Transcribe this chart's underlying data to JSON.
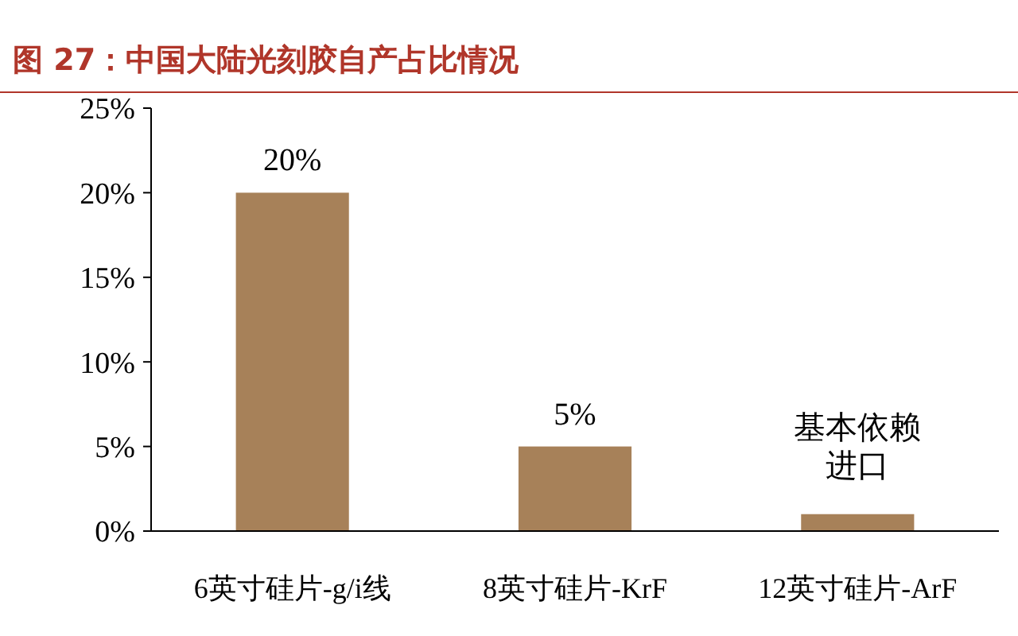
{
  "chart_data": {
    "type": "bar",
    "title": "图 27：中国大陆光刻胶自产占比情况",
    "categories": [
      "6英寸硅片-g/i线",
      "8英寸硅片-KrF",
      "12英寸硅片-ArF"
    ],
    "values": [
      20,
      5,
      1
    ],
    "value_labels": [
      "20%",
      "5%",
      "基本依赖进口"
    ],
    "color": "#a78159",
    "ylim": [
      0,
      25
    ],
    "yticks": [
      {
        "value": 0,
        "label": "0%"
      },
      {
        "value": 5,
        "label": "5%"
      },
      {
        "value": 10,
        "label": "10%"
      },
      {
        "value": 15,
        "label": "15%"
      },
      {
        "value": 20,
        "label": "20%"
      },
      {
        "value": 25,
        "label": "25%"
      }
    ],
    "grid": false
  }
}
